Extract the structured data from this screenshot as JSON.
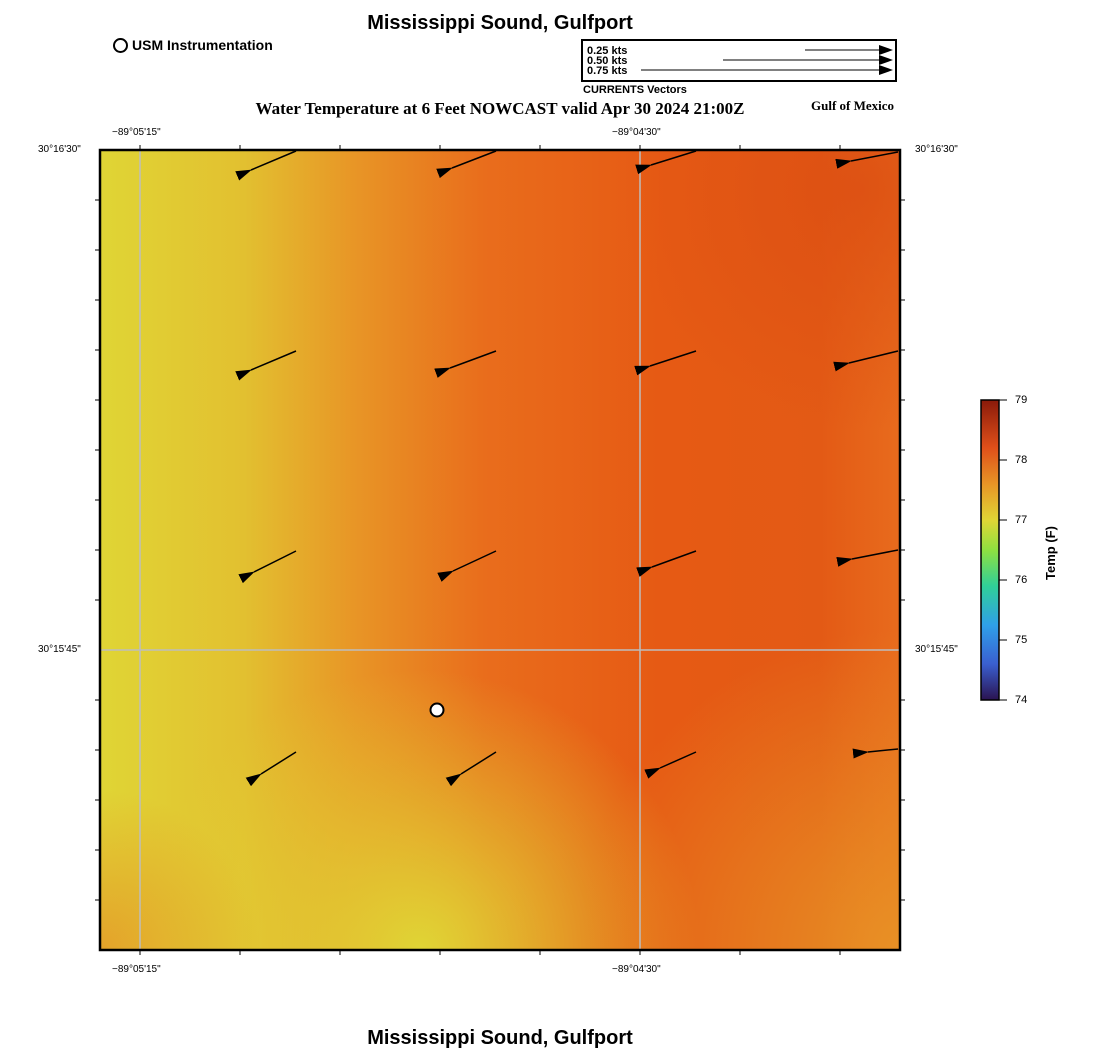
{
  "map": {
    "title": "Mississippi Sound, Gulfport",
    "subtitle": "Water Temperature at 6 Feet NOWCAST valid Apr 30 2024 21:00Z",
    "region_label": "Gulf of Mexico",
    "footer_title": "Mississippi Sound, Gulfport"
  },
  "legend": {
    "station_label": "USM Instrumentation",
    "vector_scale": [
      "0.25 kts",
      "0.50 kts",
      "0.75 kts"
    ],
    "vector_caption": "CURRENTS Vectors"
  },
  "axes": {
    "lon_labels": [
      "−89°05'15\"",
      "−89°04'30\""
    ],
    "lat_labels": [
      "30°16'30\"",
      "30°15'45\""
    ]
  },
  "colorbar": {
    "label": "Temp (F)",
    "ticks": [
      "79",
      "78",
      "77",
      "76",
      "75",
      "74"
    ],
    "range": [
      74,
      79
    ]
  },
  "colors": {
    "warm_yellow": "#e0d535",
    "orange": "#e89526",
    "deep_orange": "#e65a14"
  }
}
